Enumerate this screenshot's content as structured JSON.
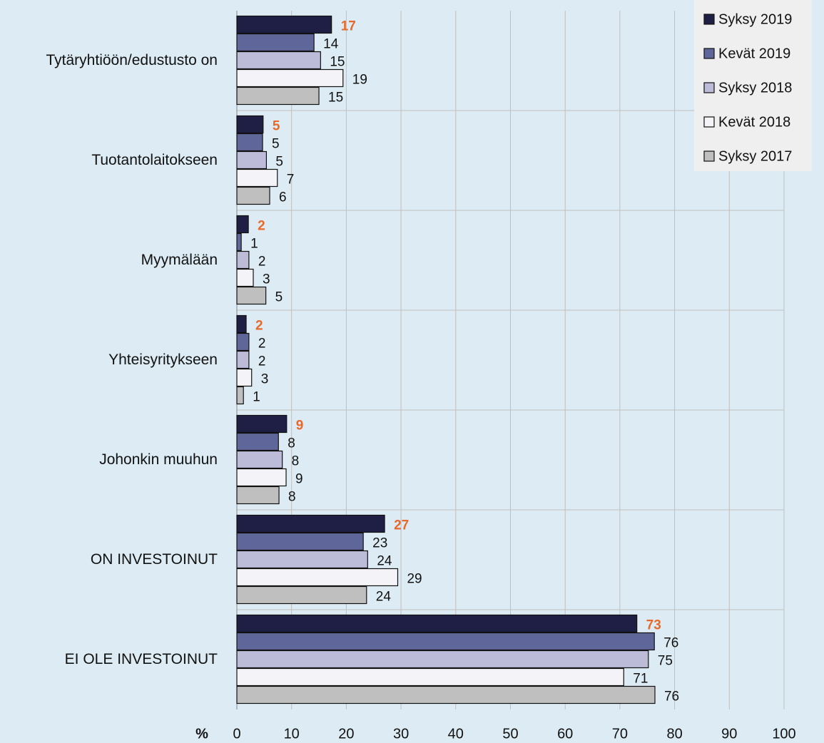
{
  "chart_data": {
    "type": "hbar",
    "categories": [
      "Tytäryhtiöön/edustusto on",
      "Tuotantolaitokseen",
      "Myymälään",
      "Yhteisyritykseen",
      "Johonkin muuhun",
      "ON INVESTOINUT",
      "EI OLE INVESTOINUT"
    ],
    "series": [
      {
        "name": "Syksy 2019",
        "color": "#1f1f45",
        "values": [
          17.3,
          4.8,
          2.1,
          1.7,
          9.1,
          27.0,
          73.1
        ],
        "value_labels": [
          "17",
          "5",
          "2",
          "2",
          "9",
          "27",
          "73"
        ],
        "label_color": "#e8692a"
      },
      {
        "name": "Kevät 2019",
        "color": "#5f6699",
        "values": [
          14.1,
          4.7,
          0.8,
          2.2,
          7.6,
          23.1,
          76.3
        ],
        "value_labels": [
          "14",
          "5",
          "1",
          "2",
          "8",
          "23",
          "76"
        ]
      },
      {
        "name": "Syksy 2018",
        "color": "#bcbcd8",
        "values": [
          15.3,
          5.4,
          2.2,
          2.2,
          8.3,
          23.9,
          75.2
        ],
        "value_labels": [
          "15",
          "5",
          "2",
          "2",
          "8",
          "24",
          "75"
        ]
      },
      {
        "name": "Kevät 2018",
        "color": "#f4f4f8",
        "values": [
          19.4,
          7.4,
          3.0,
          2.7,
          9.0,
          29.4,
          70.7
        ],
        "value_labels": [
          "19",
          "7",
          "3",
          "3",
          "9",
          "29",
          "71"
        ]
      },
      {
        "name": "Syksy 2017",
        "color": "#bfbfbf",
        "values": [
          15.0,
          6.0,
          5.3,
          1.2,
          7.7,
          23.7,
          76.4
        ],
        "value_labels": [
          "15",
          "6",
          "5",
          "1",
          "8",
          "24",
          "76"
        ]
      }
    ],
    "xlabel": "%",
    "xlim": [
      0,
      100
    ],
    "xticks": [
      0,
      10,
      20,
      30,
      40,
      50,
      60,
      70,
      80,
      90,
      100
    ],
    "grid": true,
    "legend": "top-right"
  }
}
